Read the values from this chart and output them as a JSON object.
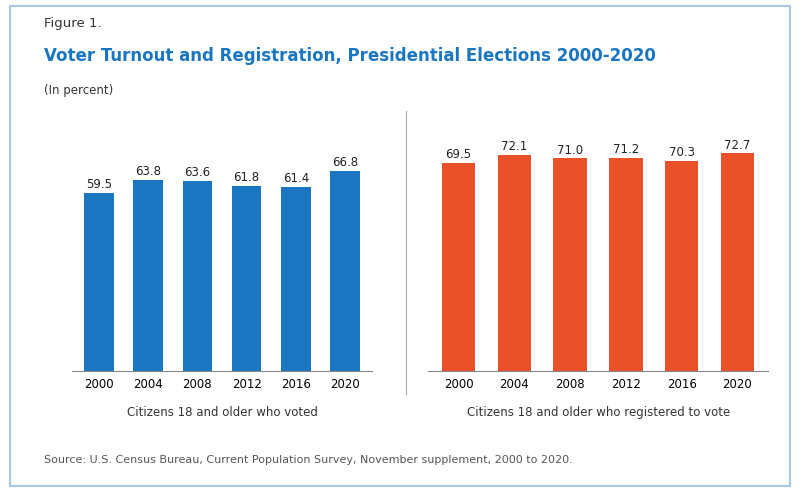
{
  "figure_label": "Figure 1.",
  "title": "Voter Turnout and Registration, Presidential Elections 2000-2020",
  "subtitle": "(In percent)",
  "source": "Source: U.S. Census Bureau, Current Population Survey, November supplement, 2000 to 2020.",
  "years": [
    "2000",
    "2004",
    "2008",
    "2012",
    "2016",
    "2020"
  ],
  "voted_values": [
    59.5,
    63.8,
    63.6,
    61.8,
    61.4,
    66.8
  ],
  "registered_values": [
    69.5,
    72.1,
    71.0,
    71.2,
    70.3,
    72.7
  ],
  "voted_color": "#1A76C1",
  "registered_color": "#E8512A",
  "voted_label": "Citizens 18 and older who voted",
  "registered_label": "Citizens 18 and older who registered to vote",
  "background_color": "#FFFFFF",
  "ylim": [
    0,
    82
  ],
  "bar_width": 0.6,
  "title_color": "#1A76C1",
  "figure_label_color": "#333333",
  "subtitle_color": "#333333",
  "source_color": "#555555",
  "value_fontsize": 8.5,
  "tick_fontsize": 8.5,
  "title_fontsize": 12,
  "figure_label_fontsize": 9.5,
  "subtitle_fontsize": 8.5,
  "source_fontsize": 8
}
